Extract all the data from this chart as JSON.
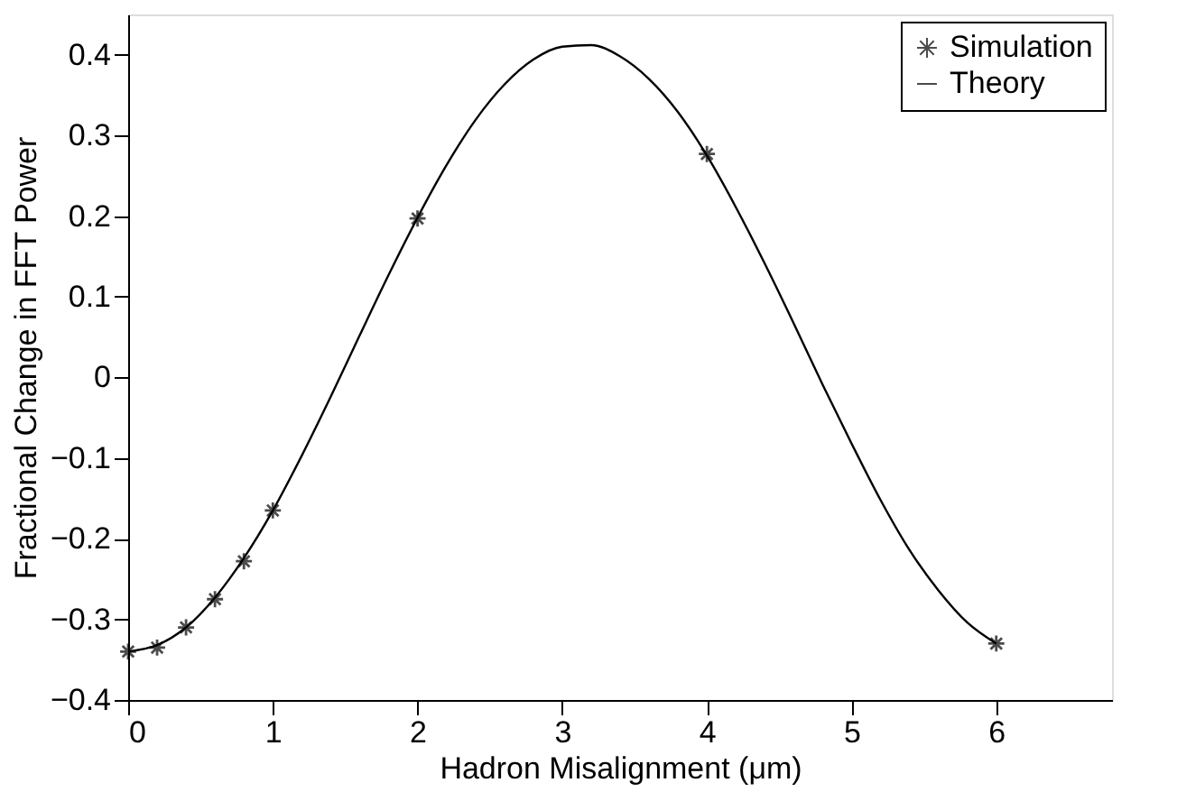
{
  "chart_data": {
    "type": "scatter",
    "xlabel": "Hadron Misalignment (μm)",
    "ylabel": "Fractional Change in FFT Power",
    "xlim": [
      0,
      6.8
    ],
    "ylim": [
      -0.4,
      0.45
    ],
    "xticks": [
      0,
      1,
      2,
      3,
      4,
      5,
      6
    ],
    "yticks": [
      -0.4,
      -0.3,
      -0.2,
      -0.1,
      0,
      0.1,
      0.2,
      0.3,
      0.4
    ],
    "grid": false,
    "legend": "top right",
    "series": [
      {
        "name": "Simulation",
        "marker": "cross",
        "color": "#000000",
        "x": [
          0,
          0.2,
          0.4,
          0.6,
          0.8,
          1,
          2,
          4,
          6
        ],
        "values": [
          -0.34,
          -0.335,
          -0.31,
          -0.275,
          -0.228,
          -0.165,
          0.197,
          0.277,
          -0.33
        ]
      },
      {
        "name": "Theory",
        "type": "line",
        "marker": "none",
        "line_style": "solid",
        "color": "#000000",
        "x": [
          0,
          0.2,
          0.4,
          0.6,
          0.8,
          1.0,
          1.2,
          1.4,
          1.6,
          1.8,
          2.0,
          2.2,
          2.4,
          2.6,
          2.8,
          3.0,
          3.2,
          3.4,
          3.6,
          3.8,
          4.0,
          4.2,
          4.4,
          4.6,
          4.8,
          5.0,
          5.2,
          5.4,
          5.6,
          5.8,
          6.0
        ],
        "values": [
          -0.34,
          -0.332,
          -0.31,
          -0.273,
          -0.224,
          -0.165,
          -0.097,
          -0.024,
          0.052,
          0.127,
          0.198,
          0.263,
          0.319,
          0.363,
          0.394,
          0.41,
          0.412,
          0.398,
          0.37,
          0.329,
          0.275,
          0.211,
          0.141,
          0.067,
          -0.009,
          -0.082,
          -0.152,
          -0.214,
          -0.264,
          -0.304,
          -0.33
        ]
      }
    ]
  }
}
